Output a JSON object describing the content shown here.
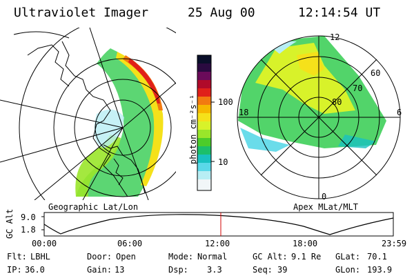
{
  "header": {
    "instrument": "Ultraviolet Imager",
    "date": "25 Aug 00",
    "time": "12:14:54 UT"
  },
  "colorbar": {
    "unit_label": "photon cm⁻²s⁻¹",
    "ticks": [
      "100",
      "10"
    ],
    "colors": [
      "#0a0f2a",
      "#2a0a40",
      "#6a0b5a",
      "#b00a2a",
      "#e0201a",
      "#f27a10",
      "#f6b800",
      "#f5e11a",
      "#d8f22a",
      "#9ae62a",
      "#4ccc2a",
      "#1cbf6a",
      "#19c1c0",
      "#5ad8e8",
      "#b8eef4",
      "#f1f6f8"
    ]
  },
  "left_map": {
    "label": "Geographic Lat/Lon"
  },
  "right_map": {
    "label": "Apex MLat/MLT",
    "mlt_labels": {
      "top": "12",
      "bottom": "0",
      "left": "18",
      "right": "6"
    },
    "lat_labels": [
      "60",
      "70",
      "80"
    ]
  },
  "altitude_plot": {
    "ylabel": "GC Alt",
    "yticks": [
      "9.0",
      "1.8"
    ],
    "xticks": [
      "00:00",
      "06:00",
      "12:00",
      "18:00",
      "23:59"
    ],
    "marker_time": "12:14:54"
  },
  "info": {
    "row1": [
      {
        "key": "Flt:",
        "value": "LBHL"
      },
      {
        "key": "Door:",
        "value": "Open"
      },
      {
        "key": "Mode:",
        "value": "Normal"
      },
      {
        "key": "GC Alt:",
        "value": "9.1 Re"
      },
      {
        "key": "GLat:",
        "value": "70.1"
      }
    ],
    "row2": [
      {
        "key": "IP:",
        "value": "36.0"
      },
      {
        "key": "Gain:",
        "value": "13"
      },
      {
        "key": "Dsp:",
        "value": "3.3"
      },
      {
        "key": "Seq:",
        "value": "39"
      },
      {
        "key": "GLon:",
        "value": "193.9"
      }
    ]
  },
  "accent_colors": {
    "marker": "#d00000",
    "trace": "#000000"
  }
}
